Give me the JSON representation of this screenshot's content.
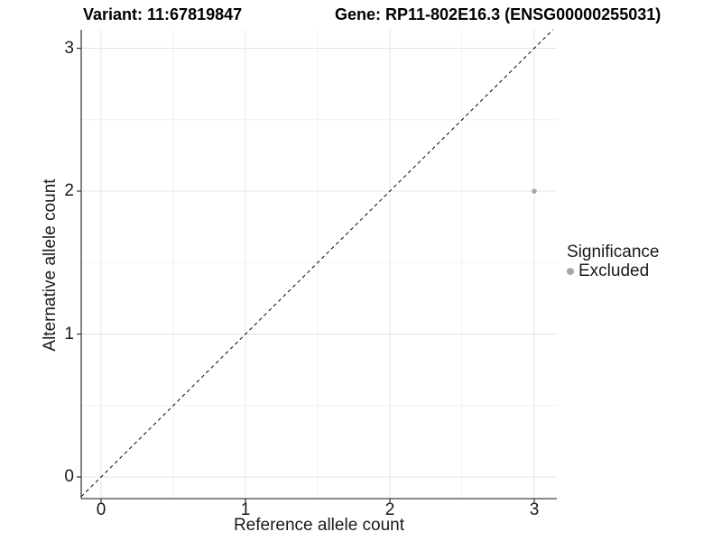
{
  "titles": {
    "variant": "Variant: 11:67819847",
    "gene": "Gene: RP11-802E16.3 (ENSG00000255031)"
  },
  "axes": {
    "x_label": "Reference allele count",
    "y_label": "Alternative allele count",
    "x_tick_labels": [
      "0",
      "1",
      "2",
      "3"
    ],
    "y_tick_labels": [
      "0",
      "1",
      "2",
      "3"
    ]
  },
  "legend": {
    "title": "Significance",
    "items": [
      {
        "label": "Excluded",
        "color": "#a8a8a8"
      }
    ]
  },
  "colors": {
    "axis_line": "#404040",
    "tick_mark": "#333333",
    "grid_major": "#e4e4e4",
    "grid_minor": "#f1f1f1",
    "reference_line": "#1a1a1a",
    "point": "#a8a8a8",
    "text": "#000000"
  },
  "chart_data": {
    "type": "scatter",
    "title": "Variant: 11:67819847 | Gene: RP11-802E16.3 (ENSG00000255031)",
    "xlabel": "Reference allele count",
    "ylabel": "Alternative allele count",
    "xlim": [
      -0.14,
      3.16
    ],
    "ylim": [
      -0.15,
      3.13
    ],
    "x_ticks": [
      0,
      1,
      2,
      3
    ],
    "y_ticks": [
      0,
      1,
      2,
      3
    ],
    "x_minor_ticks": [
      0.5,
      1.5,
      2.5
    ],
    "y_minor_ticks": [
      0.5,
      1.5,
      2.5
    ],
    "grid": true,
    "legend_position": "right",
    "series": [
      {
        "name": "Excluded",
        "color": "#a8a8a8",
        "points": [
          {
            "x": 3,
            "y": 2
          }
        ],
        "point_radius": 2.8
      }
    ],
    "reference_line": {
      "type": "identity",
      "equation": "y = x",
      "style": "dashed",
      "color": "#1a1a1a"
    }
  }
}
